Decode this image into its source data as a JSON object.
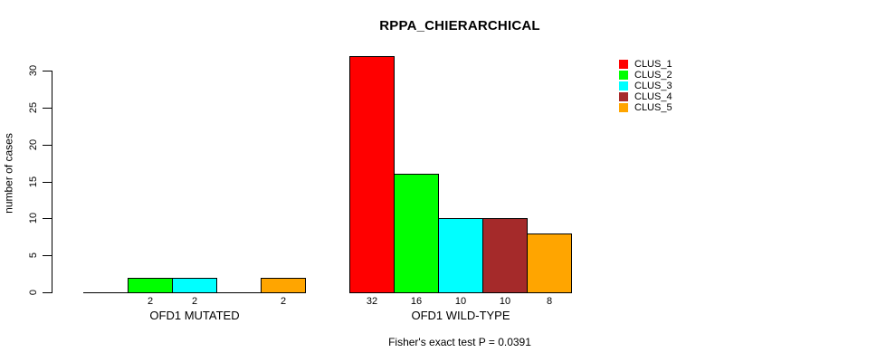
{
  "title": "RPPA_CHIERARCHICAL",
  "caption": "Fisher's exact test P = 0.0391",
  "chart_data": {
    "type": "bar",
    "title": "RPPA_CHIERARCHICAL",
    "xlabel": "",
    "ylabel": "number of cases",
    "ylim": [
      0,
      30
    ],
    "yticks": [
      0,
      5,
      10,
      15,
      20,
      25,
      30
    ],
    "grid": false,
    "legend_position": "top-right",
    "bar_value_labels_shown": true,
    "categories": [
      "OFD1 MUTATED",
      "OFD1 WILD-TYPE"
    ],
    "series": [
      {
        "name": "CLUS_1",
        "color": "#FF0000",
        "values": [
          0,
          32
        ]
      },
      {
        "name": "CLUS_2",
        "color": "#00FF00",
        "values": [
          2,
          16
        ]
      },
      {
        "name": "CLUS_3",
        "color": "#00FFFF",
        "values": [
          2,
          10
        ]
      },
      {
        "name": "CLUS_4",
        "color": "#A52A2A",
        "values": [
          0,
          10
        ]
      },
      {
        "name": "CLUS_5",
        "color": "#FFA500",
        "values": [
          2,
          8
        ]
      }
    ],
    "annotation": "Fisher's exact test P = 0.0391",
    "colors": {
      "axis": "#000000",
      "text": "#000000",
      "background": "#FFFFFF"
    }
  }
}
